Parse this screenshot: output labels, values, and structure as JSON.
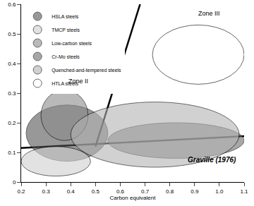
{
  "chart_data": {
    "type": "region",
    "x_label": "Carbon equivalent",
    "xlim": [
      0.2,
      1.1
    ],
    "xticks": [
      0.2,
      0.3,
      0.4,
      0.5,
      0.6,
      0.7,
      0.8,
      0.9,
      1.0,
      1.1
    ],
    "ylim": [
      0,
      0.6
    ],
    "yticks": [
      0,
      0.1,
      0.2,
      0.3,
      0.4,
      0.5,
      0.6
    ],
    "legend": "upper left",
    "grid": false,
    "regions": [
      {
        "name": "HSLA steels",
        "color": "#555555",
        "x0": 0.22,
        "x1": 0.55,
        "y0": 0.07,
        "y1": 0.26
      },
      {
        "name": "TMCP steels",
        "color": "#d0d0d0",
        "x0": 0.2,
        "x1": 0.48,
        "y0": 0.02,
        "y1": 0.12
      },
      {
        "name": "Low-carbon steels",
        "color": "#8c8c8c",
        "x0": 0.28,
        "x1": 0.47,
        "y0": 0.14,
        "y1": 0.31
      },
      {
        "name": "Cr-Mo steels",
        "color": "#6e6e6e",
        "x0": 0.55,
        "x1": 1.1,
        "y0": 0.08,
        "y1": 0.2
      },
      {
        "name": "Quenched-and-tempered steels",
        "color": "#b4b4b4",
        "x0": 0.4,
        "x1": 1.08,
        "y0": 0.05,
        "y1": 0.27
      },
      {
        "name": "HTLA steels",
        "color": "#ffffff",
        "x0": 0.73,
        "x1": 1.1,
        "y0": 0.33,
        "y1": 0.53
      }
    ],
    "lines": [
      {
        "x": [
          0.2,
          1.1
        ],
        "y": [
          0.115,
          0.155
        ]
      },
      {
        "x": [
          0.5,
          0.68
        ],
        "y": [
          0.12,
          0.6
        ]
      }
    ],
    "annotations": [
      {
        "text": "Zone II",
        "x": 0.43,
        "y": 0.34
      },
      {
        "text": "Zone III",
        "x": 0.96,
        "y": 0.57
      },
      {
        "text": "Graville (1976)",
        "x": 0.97,
        "y": 0.075
      }
    ]
  }
}
